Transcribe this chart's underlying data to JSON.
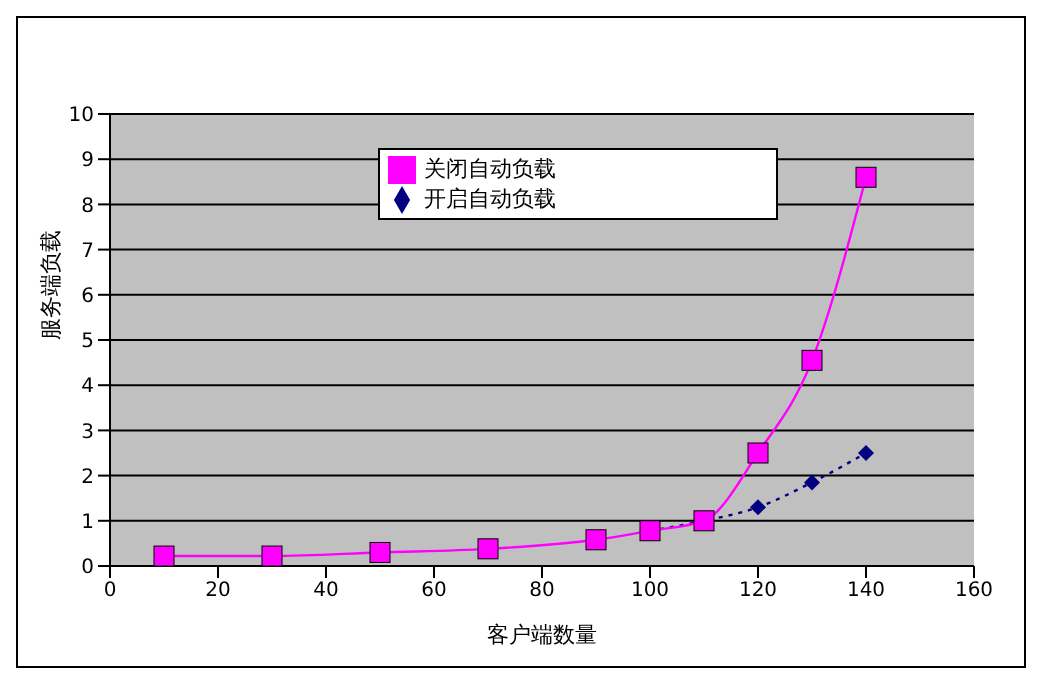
{
  "chart_data": {
    "type": "line",
    "xlabel": "客户端数量",
    "ylabel": "服务端负载",
    "x": [
      10,
      30,
      50,
      70,
      90,
      100,
      110,
      120,
      130,
      140
    ],
    "series": [
      {
        "name": "开启自动负载",
        "color": "#000080",
        "marker": "diamond",
        "line_style": "dotted",
        "values": [
          null,
          null,
          null,
          null,
          null,
          0.78,
          1.0,
          1.3,
          1.85,
          2.5
        ]
      },
      {
        "name": "关闭自动负载",
        "color": "#ff00ff",
        "marker": "square",
        "line_style": "solid",
        "values": [
          0.22,
          0.22,
          0.3,
          0.38,
          0.58,
          0.78,
          1.0,
          2.5,
          4.55,
          8.6
        ]
      }
    ],
    "xlim": [
      0,
      160
    ],
    "xticks": [
      0,
      20,
      40,
      60,
      80,
      100,
      120,
      140,
      160
    ],
    "ylim": [
      0,
      10
    ],
    "yticks": [
      0,
      1,
      2,
      3,
      4,
      5,
      6,
      7,
      8,
      9,
      10
    ],
    "grid": "y",
    "legend": "top"
  }
}
